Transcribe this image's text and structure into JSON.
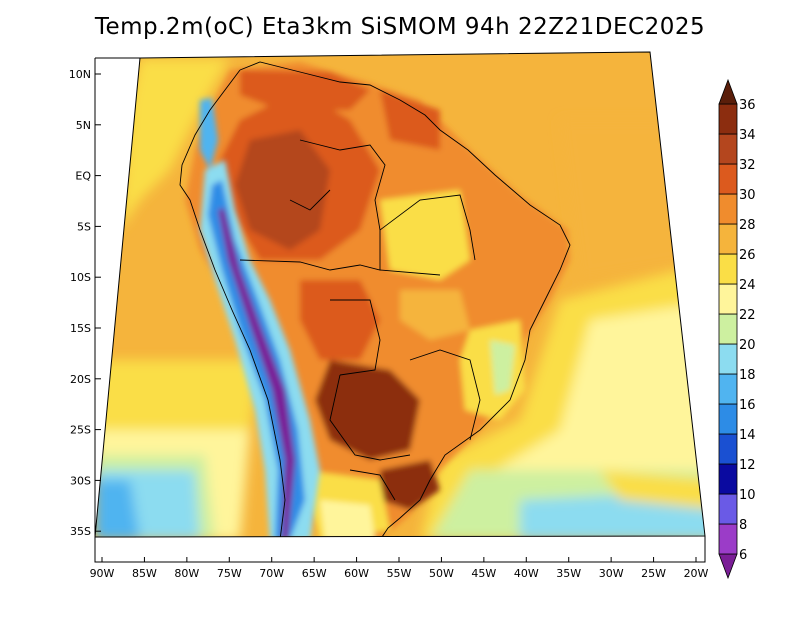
{
  "title": "Temp.2m(oC) Eta3km SiSMOM 94h 22Z21DEC2025",
  "map": {
    "lat_labels": [
      "10N",
      "5N",
      "EQ",
      "5S",
      "10S",
      "15S",
      "20S",
      "25S",
      "30S",
      "35S"
    ],
    "lon_labels": [
      "90W",
      "85W",
      "80W",
      "75W",
      "70W",
      "65W",
      "60W",
      "55W",
      "50W",
      "45W",
      "40W",
      "35W",
      "30W",
      "25W",
      "20W"
    ]
  },
  "colorbar": {
    "labels": [
      "6",
      "8",
      "10",
      "12",
      "14",
      "16",
      "18",
      "20",
      "22",
      "24",
      "26",
      "28",
      "30",
      "32",
      "34",
      "36"
    ],
    "colors": [
      "#7a1e96",
      "#9b3cc8",
      "#6a5ae6",
      "#0a0aa0",
      "#1a50d2",
      "#2d8ce6",
      "#50b4f0",
      "#8cdcf0",
      "#cdf0a0",
      "#fff59b",
      "#fade46",
      "#f5b43c",
      "#f08c2d",
      "#dc5a1e",
      "#b4461e",
      "#8c2d0f",
      "#5a1e0a"
    ]
  }
}
